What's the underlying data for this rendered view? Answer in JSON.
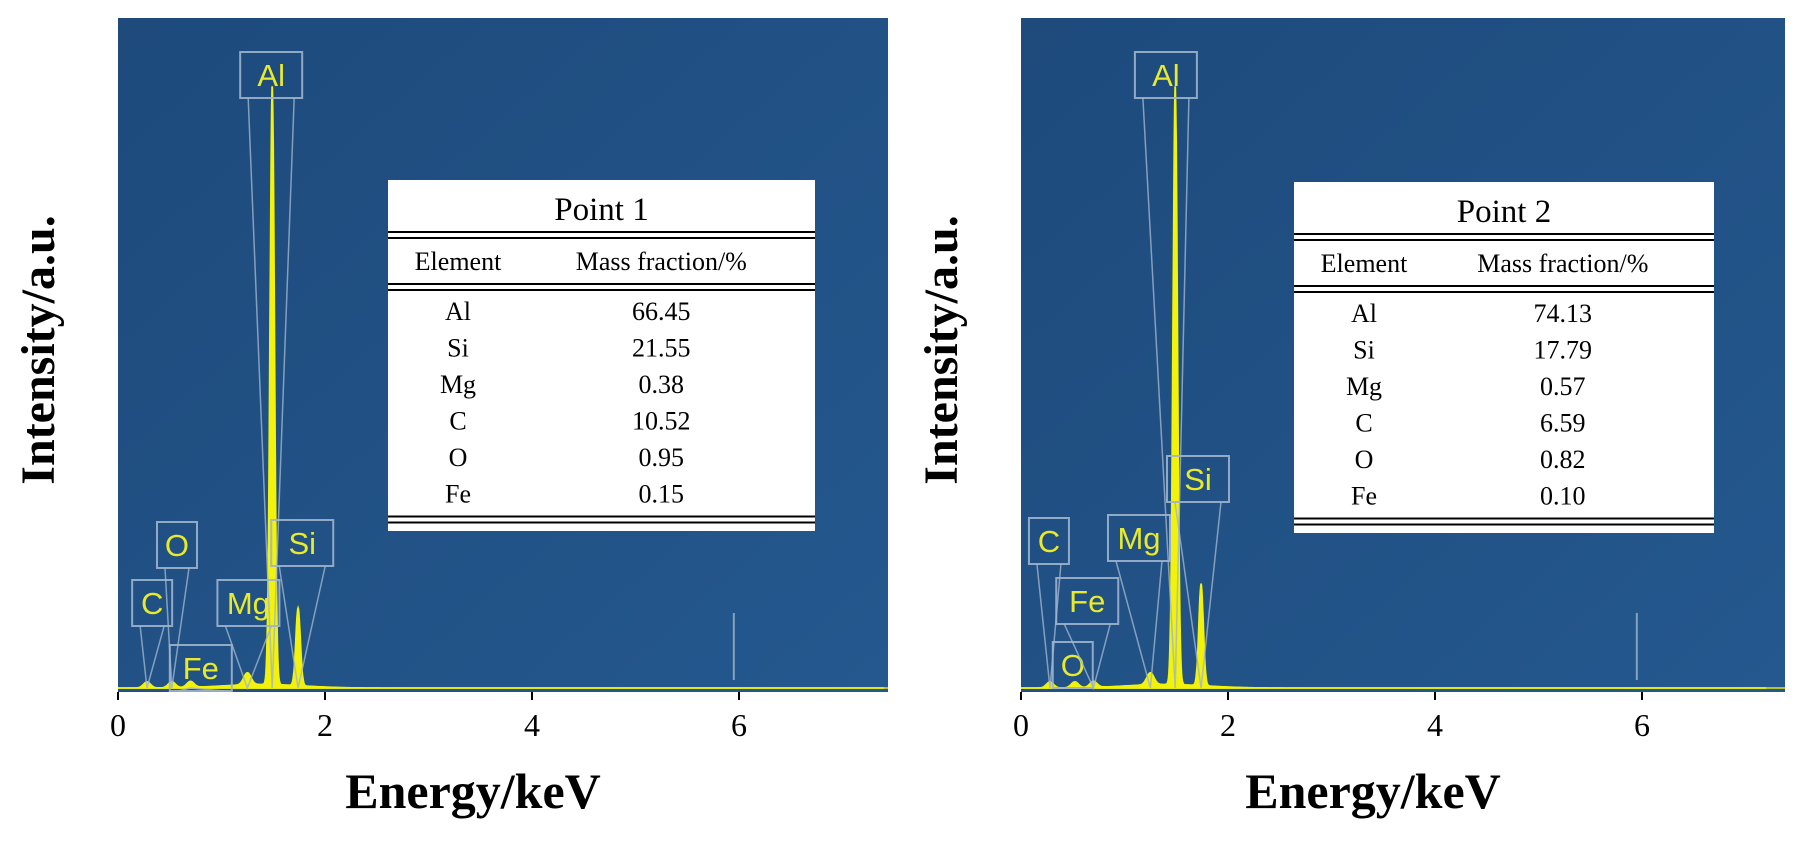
{
  "chart_data": [
    {
      "type": "line",
      "xlabel": "Energy/keV",
      "ylabel": "Intensity/a.u.",
      "xlim": [
        0,
        7.4
      ],
      "x_ticks": [
        0,
        2,
        4,
        6
      ],
      "y_ticks_shown": false,
      "grid": false,
      "background_color": "#1e4a7c",
      "spectrum_color": "#f2f20a",
      "peaks": [
        {
          "element": "C",
          "energy": 0.28,
          "relative_intensity": 0.01
        },
        {
          "element": "O",
          "energy": 0.52,
          "relative_intensity": 0.01
        },
        {
          "element": "Fe",
          "energy": 0.7,
          "relative_intensity": 0.01
        },
        {
          "element": "Mg",
          "energy": 1.25,
          "relative_intensity": 0.02
        },
        {
          "element": "Al",
          "energy": 1.49,
          "relative_intensity": 1.0
        },
        {
          "element": "Si",
          "energy": 1.74,
          "relative_intensity": 0.13
        }
      ],
      "table": {
        "title": "Point 1",
        "columns": [
          "Element",
          "Mass fraction/%"
        ],
        "rows": [
          [
            "Al",
            "66.45"
          ],
          [
            "Si",
            "21.55"
          ],
          [
            "Mg",
            "0.38"
          ],
          [
            "C",
            "10.52"
          ],
          [
            "O",
            "0.95"
          ],
          [
            "Fe",
            "0.15"
          ]
        ]
      }
    },
    {
      "type": "line",
      "xlabel": "Energy/keV",
      "ylabel": "Intensity/a.u.",
      "xlim": [
        0,
        7.2
      ],
      "x_ticks": [
        0,
        2,
        4,
        6
      ],
      "y_ticks_shown": false,
      "grid": false,
      "background_color": "#1e4a7c",
      "spectrum_color": "#f2f20a",
      "peaks": [
        {
          "element": "C",
          "energy": 0.28,
          "relative_intensity": 0.01
        },
        {
          "element": "O",
          "energy": 0.52,
          "relative_intensity": 0.01
        },
        {
          "element": "Fe",
          "energy": 0.7,
          "relative_intensity": 0.01
        },
        {
          "element": "Mg",
          "energy": 1.25,
          "relative_intensity": 0.02
        },
        {
          "element": "Al",
          "energy": 1.49,
          "relative_intensity": 1.0
        },
        {
          "element": "Si",
          "energy": 1.74,
          "relative_intensity": 0.17
        }
      ],
      "table": {
        "title": "Point 2",
        "columns": [
          "Element",
          "Mass fraction/%"
        ],
        "rows": [
          [
            "Al",
            "74.13"
          ],
          [
            "Si",
            "17.79"
          ],
          [
            "Mg",
            "0.57"
          ],
          [
            "C",
            "6.59"
          ],
          [
            "O",
            "0.82"
          ],
          [
            "Fe",
            "0.10"
          ]
        ]
      }
    }
  ]
}
